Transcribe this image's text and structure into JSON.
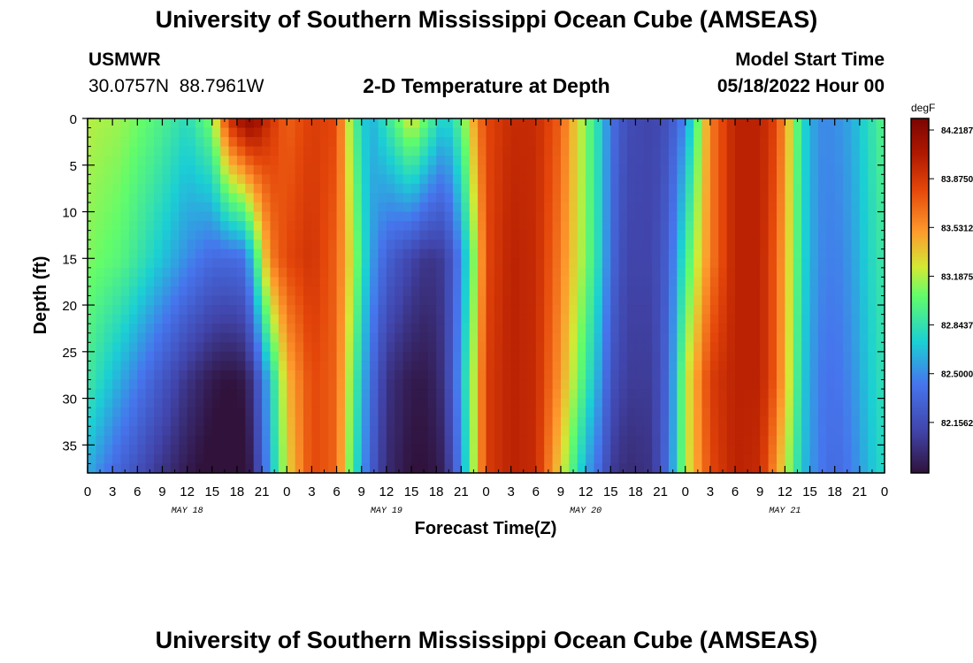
{
  "header": {
    "title": "University of Southern Mississippi Ocean Cube (AMSEAS)",
    "station": "USMWR",
    "coords": "30.0757N  88.7961W",
    "plot_title": "2-D Temperature at Depth",
    "model_label": "Model Start Time",
    "model_time": "05/18/2022 Hour 00"
  },
  "footer": {
    "title": "University of Southern Mississippi Ocean Cube (AMSEAS)"
  },
  "chart_data": {
    "type": "heatmap",
    "title": "2-D Temperature at Depth",
    "xlabel": "Forecast Time(Z)",
    "ylabel": "Depth (ft)",
    "x_hours_range": [
      0,
      96
    ],
    "x_tick_labels": [
      "0",
      "3",
      "6",
      "9",
      "12",
      "15",
      "18",
      "21",
      "0",
      "3",
      "6",
      "9",
      "12",
      "15",
      "18",
      "21",
      "0",
      "3",
      "6",
      "9",
      "12",
      "15",
      "18",
      "21",
      "0",
      "3",
      "6",
      "9",
      "12",
      "15",
      "18",
      "21",
      "0"
    ],
    "date_labels": [
      {
        "label": "MAY 18",
        "hour": 12
      },
      {
        "label": "MAY 19",
        "hour": 36
      },
      {
        "label": "MAY 20",
        "hour": 60
      },
      {
        "label": "MAY 21",
        "hour": 84
      }
    ],
    "ylim": [
      0,
      38
    ],
    "y_ticks": [
      0,
      5,
      10,
      15,
      20,
      25,
      30,
      35
    ],
    "y_tick_labels": [
      "0",
      "5",
      "10",
      "15",
      "20",
      "25",
      "30",
      "35"
    ],
    "colorbar": {
      "unit": "degF",
      "range": [
        81.8,
        84.3
      ],
      "tick_values": [
        84.21875,
        83.875,
        83.53125,
        83.1875,
        82.84375,
        82.5,
        82.15625
      ],
      "tick_labels": [
        "84.21875",
        "83.87500",
        "83.53125",
        "83.18750",
        "82.84375",
        "82.50000",
        "82.15625"
      ]
    },
    "temperature_at_depth_degF": {
      "hours": [
        0,
        4,
        8,
        12,
        15,
        17,
        19,
        20,
        22,
        24,
        27,
        30,
        32,
        34,
        36,
        39,
        41,
        43,
        45,
        47,
        48,
        51,
        54,
        57,
        60,
        62,
        63,
        65,
        68,
        70,
        72,
        75,
        78,
        81,
        83,
        85,
        86,
        88,
        90,
        92,
        94,
        96
      ],
      "surface_0ft": [
        83.2,
        83.15,
        83.0,
        82.8,
        83.1,
        83.9,
        84.2,
        84.2,
        83.9,
        83.7,
        83.85,
        83.8,
        83.0,
        82.6,
        82.85,
        83.3,
        83.0,
        82.7,
        83.0,
        83.6,
        83.8,
        83.95,
        83.95,
        83.7,
        83.1,
        82.7,
        82.4,
        82.15,
        82.1,
        82.2,
        82.5,
        83.6,
        84.0,
        84.0,
        83.8,
        83.2,
        82.8,
        82.5,
        82.5,
        82.6,
        82.8,
        83.0
      ],
      "depth_15ft": [
        83.1,
        83.0,
        82.75,
        82.5,
        82.35,
        82.35,
        82.4,
        82.8,
        83.6,
        83.8,
        83.9,
        83.7,
        83.2,
        82.6,
        82.3,
        82.1,
        82.0,
        82.05,
        82.5,
        83.3,
        83.8,
        84.0,
        83.95,
        83.6,
        83.1,
        82.7,
        82.35,
        82.1,
        82.1,
        82.3,
        82.9,
        83.6,
        84.0,
        84.0,
        83.7,
        83.15,
        82.8,
        82.5,
        82.45,
        82.55,
        82.75,
        82.9
      ],
      "depth_28ft": [
        82.9,
        82.6,
        82.3,
        82.0,
        81.85,
        81.8,
        81.85,
        82.05,
        82.7,
        83.4,
        83.8,
        83.7,
        83.0,
        82.4,
        82.0,
        81.85,
        81.85,
        82.0,
        82.6,
        83.4,
        83.85,
        84.0,
        83.95,
        83.5,
        82.9,
        82.5,
        82.2,
        82.05,
        82.05,
        82.35,
        83.2,
        83.85,
        84.0,
        84.0,
        83.7,
        83.1,
        82.75,
        82.45,
        82.4,
        82.5,
        82.7,
        82.85
      ],
      "bottom_38ft": [
        82.6,
        82.3,
        82.05,
        81.85,
        81.75,
        81.7,
        81.75,
        81.95,
        82.6,
        83.3,
        83.8,
        83.7,
        82.9,
        82.3,
        81.95,
        81.8,
        81.8,
        81.9,
        82.5,
        83.4,
        83.85,
        84.0,
        83.95,
        83.3,
        82.6,
        82.3,
        82.05,
        81.95,
        82.0,
        82.4,
        83.2,
        83.8,
        84.0,
        83.95,
        83.5,
        83.0,
        82.7,
        82.45,
        82.35,
        82.45,
        82.65,
        82.8
      ]
    }
  }
}
